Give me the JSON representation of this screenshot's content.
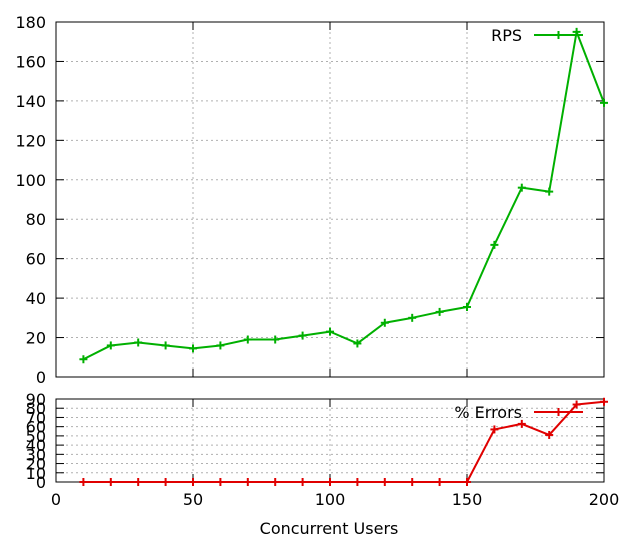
{
  "chart_data": [
    {
      "type": "line",
      "xlim": [
        0,
        200
      ],
      "ylim": [
        0,
        180
      ],
      "grid": true,
      "legend_position": "top-right",
      "x_ticks": [
        "0",
        "50",
        "100",
        "150",
        "200"
      ],
      "y_ticks": [
        "0",
        "20",
        "40",
        "60",
        "80",
        "100",
        "120",
        "140",
        "160",
        "180"
      ],
      "x": [
        10,
        20,
        30,
        40,
        50,
        60,
        70,
        80,
        90,
        100,
        110,
        120,
        130,
        140,
        150,
        160,
        170,
        180,
        190,
        200
      ],
      "series": [
        {
          "name": "RPS",
          "color": "#00b000",
          "values": [
            9,
            16,
            17.5,
            16,
            14.5,
            16,
            19,
            19,
            21,
            23,
            17,
            27.5,
            30,
            33,
            35.5,
            67,
            96,
            94,
            175,
            139
          ]
        }
      ]
    },
    {
      "type": "line",
      "xlim": [
        0,
        200
      ],
      "ylim": [
        0,
        90
      ],
      "grid": true,
      "legend_position": "top-right",
      "x_ticks": [
        "0",
        "50",
        "100",
        "150",
        "200"
      ],
      "y_ticks": [
        "0",
        "10",
        "20",
        "30",
        "40",
        "50",
        "60",
        "70",
        "80",
        "90"
      ],
      "xlabel": "Concurrent Users",
      "x": [
        10,
        20,
        30,
        40,
        50,
        60,
        70,
        80,
        90,
        100,
        110,
        120,
        130,
        140,
        150,
        160,
        170,
        180,
        190,
        200
      ],
      "series": [
        {
          "name": "% Errors",
          "color": "#e00000",
          "values": [
            0,
            0,
            0,
            0,
            0,
            0,
            0,
            0,
            0,
            0,
            0,
            0,
            0,
            0,
            0,
            57,
            63,
            51,
            84,
            87
          ]
        }
      ]
    }
  ]
}
